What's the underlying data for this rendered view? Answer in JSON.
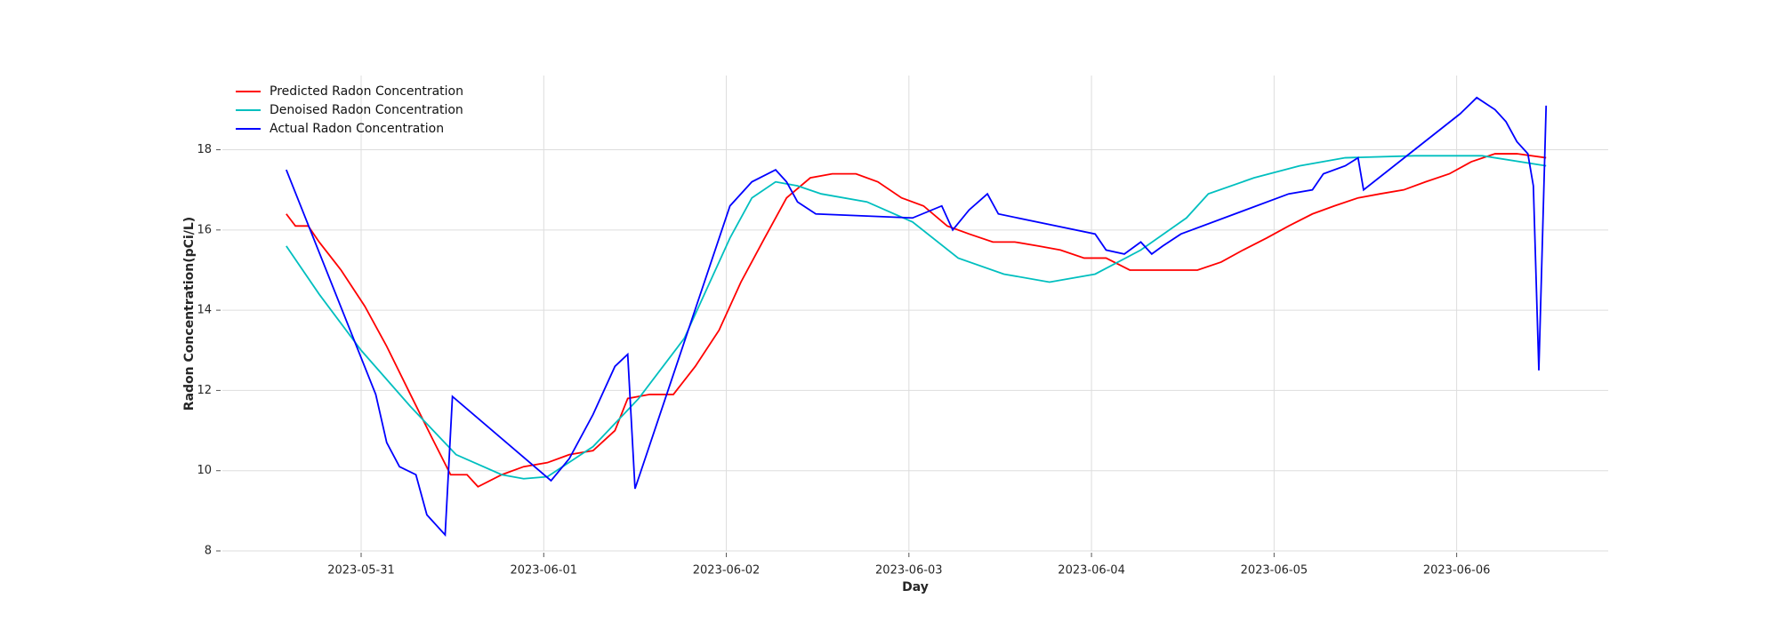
{
  "chart_data": {
    "type": "line",
    "x_label": "Day",
    "y_label": "Radon Concentration(pCi/L)",
    "xlim": [
      -0.76,
      6.83
    ],
    "ylim": [
      8,
      19.85
    ],
    "xticks": [
      {
        "value": 0,
        "label": "2023-05-31"
      },
      {
        "value": 1,
        "label": "2023-06-01"
      },
      {
        "value": 2,
        "label": "2023-06-02"
      },
      {
        "value": 3,
        "label": "2023-06-03"
      },
      {
        "value": 4,
        "label": "2023-06-04"
      },
      {
        "value": 5,
        "label": "2023-06-05"
      },
      {
        "value": 6,
        "label": "2023-06-06"
      }
    ],
    "yticks": [
      8,
      10,
      12,
      14,
      16,
      18
    ],
    "grid": true,
    "legend": "upper left",
    "series": [
      {
        "name": "Predicted Radon Concentration",
        "color": "#ff0000",
        "x": [
          -0.41,
          -0.36,
          -0.29,
          -0.23,
          -0.11,
          0.02,
          0.14,
          0.27,
          0.39,
          0.49,
          0.58,
          0.64,
          0.77,
          0.89,
          1.02,
          1.14,
          1.27,
          1.39,
          1.46,
          1.58,
          1.71,
          1.83,
          1.96,
          2.08,
          2.21,
          2.33,
          2.46,
          2.58,
          2.71,
          2.83,
          2.96,
          3.08,
          3.21,
          3.33,
          3.46,
          3.58,
          3.71,
          3.83,
          3.96,
          4.08,
          4.21,
          4.33,
          4.46,
          4.58,
          4.71,
          4.83,
          4.96,
          5.08,
          5.21,
          5.33,
          5.46,
          5.58,
          5.71,
          5.83,
          5.96,
          6.08,
          6.21,
          6.33,
          6.49
        ],
        "values": [
          16.4,
          16.1,
          16.1,
          15.7,
          15.0,
          14.1,
          13.1,
          11.9,
          10.8,
          9.9,
          9.9,
          9.6,
          9.9,
          10.1,
          10.2,
          10.4,
          10.5,
          11.0,
          11.8,
          11.9,
          11.9,
          12.6,
          13.5,
          14.7,
          15.8,
          16.8,
          17.3,
          17.4,
          17.4,
          17.2,
          16.8,
          16.6,
          16.1,
          15.9,
          15.7,
          15.7,
          15.6,
          15.5,
          15.3,
          15.3,
          15.0,
          15.0,
          15.0,
          15.0,
          15.2,
          15.5,
          15.8,
          16.1,
          16.4,
          16.6,
          16.8,
          16.9,
          17.0,
          17.2,
          17.4,
          17.7,
          17.9,
          17.9,
          17.8
        ]
      },
      {
        "name": "Denoised Radon Concentration",
        "color": "#00bfbf",
        "x": [
          -0.41,
          -0.23,
          0,
          0.27,
          0.52,
          0.77,
          0.89,
          1.02,
          1.27,
          1.52,
          1.77,
          2.02,
          2.14,
          2.27,
          2.39,
          2.52,
          2.77,
          3.02,
          3.27,
          3.52,
          3.77,
          4.02,
          4.27,
          4.52,
          4.64,
          4.89,
          5.14,
          5.39,
          5.77,
          6.14,
          6.49
        ],
        "values": [
          15.6,
          14.4,
          13.0,
          11.6,
          10.4,
          9.9,
          9.8,
          9.85,
          10.6,
          11.8,
          13.3,
          15.8,
          16.8,
          17.2,
          17.1,
          16.9,
          16.7,
          16.2,
          15.3,
          14.9,
          14.7,
          14.9,
          15.5,
          16.3,
          16.9,
          17.3,
          17.6,
          17.8,
          17.85,
          17.85,
          17.6
        ]
      },
      {
        "name": "Actual Radon Concentration",
        "color": "#0000ff",
        "x": [
          -0.41,
          0.08,
          0.14,
          0.21,
          0.3,
          0.36,
          0.46,
          0.5,
          1.04,
          1.14,
          1.27,
          1.39,
          1.46,
          1.5,
          2.02,
          2.14,
          2.27,
          2.33,
          2.39,
          2.49,
          3.02,
          3.18,
          3.24,
          3.33,
          3.43,
          3.49,
          4.02,
          4.08,
          4.18,
          4.27,
          4.33,
          4.39,
          4.49,
          5.08,
          5.21,
          5.27,
          5.39,
          5.46,
          5.49,
          6.02,
          6.11,
          6.21,
          6.27,
          6.33,
          6.39,
          6.42,
          6.45,
          6.49
        ],
        "values": [
          17.5,
          11.9,
          10.7,
          10.1,
          9.9,
          8.9,
          8.4,
          11.85,
          9.75,
          10.3,
          11.4,
          12.6,
          12.9,
          9.55,
          16.6,
          17.2,
          17.5,
          17.2,
          16.7,
          16.4,
          16.3,
          16.6,
          16.0,
          16.5,
          16.9,
          16.4,
          15.9,
          15.5,
          15.4,
          15.7,
          15.4,
          15.6,
          15.9,
          16.9,
          17.0,
          17.4,
          17.6,
          17.8,
          17.0,
          18.9,
          19.3,
          19.0,
          18.7,
          18.2,
          17.9,
          17.1,
          12.5,
          19.1
        ]
      }
    ]
  }
}
